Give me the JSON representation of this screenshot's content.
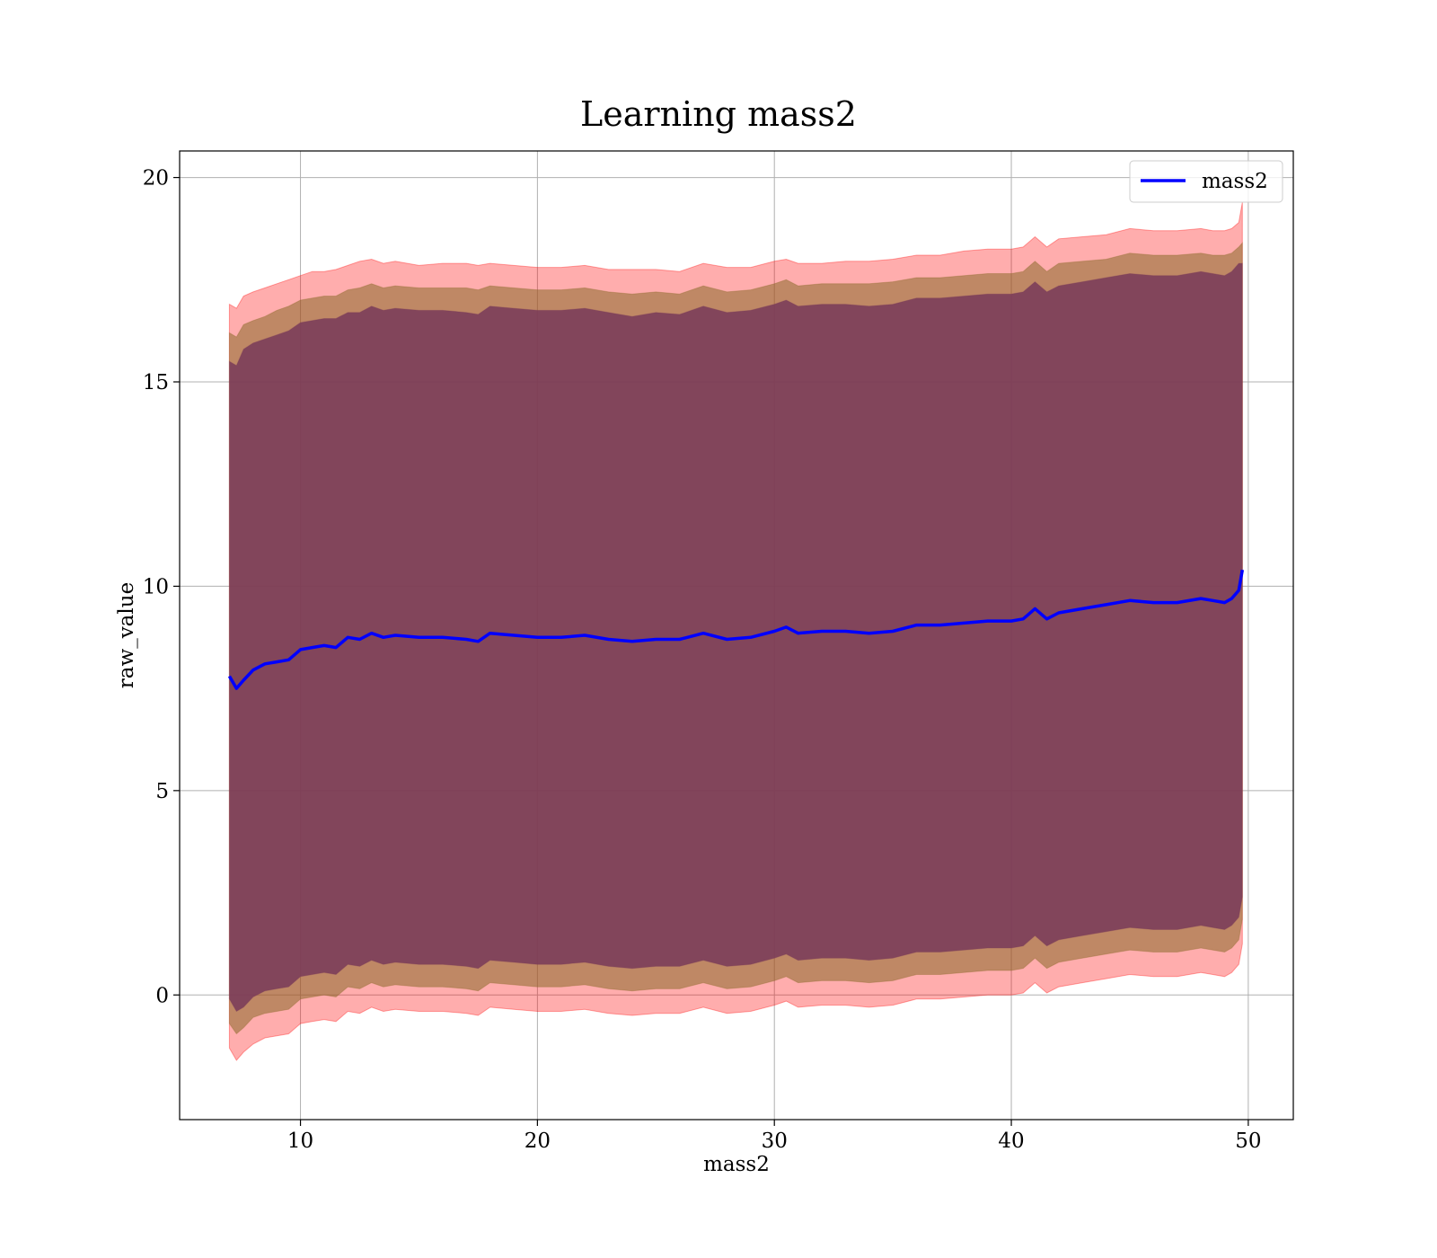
{
  "chart_data": {
    "type": "area",
    "title": "Learning mass2",
    "xlabel": "mass2",
    "ylabel": "raw_value",
    "xlim": [
      4.9,
      51.9
    ],
    "ylim": [
      -3.05,
      20.65
    ],
    "xticks": [
      10,
      20,
      30,
      40,
      50
    ],
    "yticks": [
      0,
      5,
      10,
      15,
      20
    ],
    "grid": true,
    "legend": {
      "position": "top-right",
      "entries": [
        "mass2"
      ]
    },
    "colors": {
      "mean_line": "#0000ff",
      "band_outer": "#ff0000",
      "band_mid": "#8b6a2a",
      "band_inner": "#7a3b5a",
      "grid": "#b0b0b0"
    },
    "series": [
      {
        "name": "mass2",
        "x": [
          7.0,
          7.3,
          7.6,
          8.0,
          8.5,
          9.0,
          9.5,
          10.0,
          10.5,
          11.0,
          11.5,
          12.0,
          12.5,
          13.0,
          13.5,
          14.0,
          15.0,
          16.0,
          17.0,
          17.5,
          18.0,
          19.0,
          20.0,
          21.0,
          22.0,
          23.0,
          24.0,
          25.0,
          26.0,
          27.0,
          28.0,
          29.0,
          30.0,
          30.5,
          31.0,
          32.0,
          33.0,
          34.0,
          35.0,
          36.0,
          37.0,
          38.0,
          39.0,
          40.0,
          40.5,
          41.0,
          41.5,
          42.0,
          43.0,
          44.0,
          45.0,
          46.0,
          47.0,
          48.0,
          48.5,
          49.0,
          49.3,
          49.6,
          49.75
        ],
        "mean": [
          7.8,
          7.5,
          7.7,
          7.95,
          8.1,
          8.15,
          8.2,
          8.45,
          8.5,
          8.55,
          8.5,
          8.75,
          8.7,
          8.85,
          8.75,
          8.8,
          8.75,
          8.75,
          8.7,
          8.65,
          8.85,
          8.8,
          8.75,
          8.75,
          8.8,
          8.7,
          8.65,
          8.7,
          8.7,
          8.85,
          8.7,
          8.75,
          8.9,
          9.0,
          8.85,
          8.9,
          8.9,
          8.85,
          8.9,
          9.05,
          9.05,
          9.1,
          9.15,
          9.15,
          9.2,
          9.45,
          9.2,
          9.35,
          9.45,
          9.55,
          9.65,
          9.6,
          9.6,
          9.7,
          9.65,
          9.6,
          9.7,
          9.9,
          10.4
        ],
        "upper_outer": [
          16.9,
          16.8,
          17.1,
          17.2,
          17.3,
          17.4,
          17.5,
          17.6,
          17.7,
          17.7,
          17.75,
          17.85,
          17.95,
          18.0,
          17.9,
          17.95,
          17.85,
          17.9,
          17.9,
          17.85,
          17.9,
          17.85,
          17.8,
          17.8,
          17.85,
          17.75,
          17.75,
          17.75,
          17.7,
          17.9,
          17.8,
          17.8,
          17.95,
          18.0,
          17.9,
          17.9,
          17.95,
          17.95,
          18.0,
          18.1,
          18.1,
          18.2,
          18.25,
          18.25,
          18.3,
          18.55,
          18.3,
          18.5,
          18.55,
          18.6,
          18.75,
          18.7,
          18.7,
          18.75,
          18.7,
          18.7,
          18.75,
          18.9,
          19.4
        ],
        "upper_mid": [
          16.2,
          16.1,
          16.4,
          16.5,
          16.6,
          16.75,
          16.85,
          17.0,
          17.05,
          17.1,
          17.1,
          17.25,
          17.3,
          17.4,
          17.3,
          17.35,
          17.3,
          17.3,
          17.3,
          17.25,
          17.35,
          17.3,
          17.25,
          17.25,
          17.3,
          17.2,
          17.15,
          17.2,
          17.15,
          17.35,
          17.2,
          17.25,
          17.4,
          17.5,
          17.35,
          17.4,
          17.4,
          17.4,
          17.45,
          17.55,
          17.55,
          17.6,
          17.65,
          17.65,
          17.7,
          17.95,
          17.7,
          17.9,
          17.95,
          18.0,
          18.15,
          18.1,
          18.1,
          18.15,
          18.1,
          18.1,
          18.15,
          18.3,
          18.4
        ],
        "upper_inner": [
          15.5,
          15.4,
          15.8,
          15.95,
          16.05,
          16.15,
          16.25,
          16.45,
          16.5,
          16.55,
          16.55,
          16.7,
          16.7,
          16.85,
          16.75,
          16.8,
          16.75,
          16.75,
          16.7,
          16.65,
          16.85,
          16.8,
          16.75,
          16.75,
          16.8,
          16.7,
          16.6,
          16.7,
          16.65,
          16.85,
          16.7,
          16.75,
          16.9,
          17.0,
          16.85,
          16.9,
          16.9,
          16.85,
          16.9,
          17.05,
          17.05,
          17.1,
          17.15,
          17.15,
          17.2,
          17.45,
          17.2,
          17.35,
          17.45,
          17.55,
          17.65,
          17.6,
          17.6,
          17.7,
          17.65,
          17.6,
          17.7,
          17.9,
          17.9
        ],
        "lower_inner": [
          -0.1,
          -0.4,
          -0.3,
          -0.05,
          0.1,
          0.15,
          0.2,
          0.45,
          0.5,
          0.55,
          0.5,
          0.75,
          0.7,
          0.85,
          0.75,
          0.8,
          0.75,
          0.75,
          0.7,
          0.65,
          0.85,
          0.8,
          0.75,
          0.75,
          0.8,
          0.7,
          0.65,
          0.7,
          0.7,
          0.85,
          0.7,
          0.75,
          0.9,
          1.0,
          0.85,
          0.9,
          0.9,
          0.85,
          0.9,
          1.05,
          1.05,
          1.1,
          1.15,
          1.15,
          1.2,
          1.45,
          1.2,
          1.35,
          1.45,
          1.55,
          1.65,
          1.6,
          1.6,
          1.7,
          1.65,
          1.6,
          1.7,
          1.9,
          2.4
        ],
        "lower_mid": [
          -0.7,
          -0.95,
          -0.8,
          -0.55,
          -0.45,
          -0.4,
          -0.35,
          -0.1,
          -0.05,
          0.0,
          -0.05,
          0.2,
          0.15,
          0.3,
          0.2,
          0.25,
          0.2,
          0.2,
          0.15,
          0.1,
          0.3,
          0.25,
          0.2,
          0.2,
          0.25,
          0.15,
          0.1,
          0.15,
          0.15,
          0.3,
          0.15,
          0.2,
          0.35,
          0.45,
          0.3,
          0.35,
          0.35,
          0.3,
          0.35,
          0.5,
          0.5,
          0.55,
          0.6,
          0.6,
          0.65,
          0.9,
          0.65,
          0.8,
          0.9,
          1.0,
          1.1,
          1.05,
          1.05,
          1.15,
          1.1,
          1.05,
          1.15,
          1.35,
          1.85
        ],
        "lower_outer": [
          -1.3,
          -1.6,
          -1.4,
          -1.2,
          -1.05,
          -1.0,
          -0.95,
          -0.7,
          -0.65,
          -0.6,
          -0.65,
          -0.4,
          -0.45,
          -0.3,
          -0.4,
          -0.35,
          -0.4,
          -0.4,
          -0.45,
          -0.5,
          -0.3,
          -0.35,
          -0.4,
          -0.4,
          -0.35,
          -0.45,
          -0.5,
          -0.45,
          -0.45,
          -0.3,
          -0.45,
          -0.4,
          -0.25,
          -0.15,
          -0.3,
          -0.25,
          -0.25,
          -0.3,
          -0.25,
          -0.1,
          -0.1,
          -0.05,
          0.0,
          0.0,
          0.05,
          0.3,
          0.05,
          0.2,
          0.3,
          0.4,
          0.5,
          0.45,
          0.45,
          0.55,
          0.5,
          0.45,
          0.55,
          0.75,
          1.25
        ]
      }
    ]
  }
}
